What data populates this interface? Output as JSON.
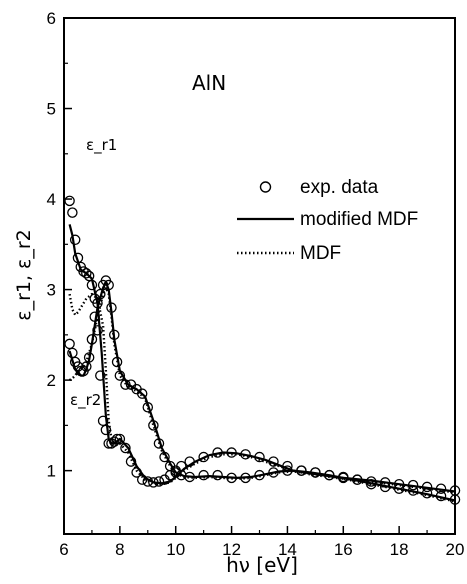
{
  "chart_data": {
    "type": "scatter",
    "title": "",
    "xlabel": "hν [eV]",
    "ylabel": "ε_r1, ε_r2",
    "xlim": [
      6,
      20
    ],
    "ylim": [
      0.3,
      6
    ],
    "x_ticks": [
      6,
      8,
      10,
      12,
      14,
      16,
      18,
      20
    ],
    "y_ticks": [
      1,
      2,
      3,
      4,
      5,
      6
    ],
    "grid": false,
    "legend_position": "right, upper-middle",
    "annotations": {
      "material": "AlN",
      "eps_r1_label": "ε_r1",
      "eps_r2_label": "ε_r2"
    },
    "series": [
      {
        "name": "exp. data",
        "kind": "markers",
        "curves": [
          {
            "label": "ε_r1",
            "x": [
              6.2,
              6.3,
              6.4,
              6.5,
              6.6,
              6.7,
              6.8,
              6.9,
              7.0,
              7.1,
              7.2,
              7.3,
              7.4,
              7.5,
              7.6,
              7.7,
              7.8,
              7.9,
              8.0,
              8.2,
              8.4,
              8.6,
              8.8,
              9.0,
              9.2,
              9.4,
              9.6,
              9.8,
              10.0,
              10.2,
              10.5,
              11.0,
              11.5,
              12.0,
              12.5,
              13.0,
              13.5,
              14.0,
              14.5,
              15.0,
              15.5,
              16.0,
              16.5,
              17.0,
              17.5,
              18.0,
              18.5,
              19.0,
              19.5,
              20.0
            ],
            "y": [
              3.98,
              3.85,
              3.55,
              3.35,
              3.25,
              3.2,
              3.18,
              3.15,
              3.05,
              2.9,
              2.55,
              2.05,
              1.55,
              1.45,
              1.3,
              1.3,
              1.32,
              1.35,
              1.35,
              1.25,
              1.1,
              0.98,
              0.9,
              0.88,
              0.87,
              0.88,
              0.9,
              0.95,
              1.0,
              1.05,
              1.1,
              1.15,
              1.2,
              1.2,
              1.18,
              1.15,
              1.1,
              1.05,
              1.0,
              0.98,
              0.95,
              0.93,
              0.9,
              0.88,
              0.87,
              0.85,
              0.84,
              0.82,
              0.8,
              0.78
            ]
          },
          {
            "label": "ε_r2",
            "x": [
              6.2,
              6.3,
              6.4,
              6.5,
              6.6,
              6.7,
              6.8,
              6.9,
              7.0,
              7.1,
              7.2,
              7.3,
              7.4,
              7.5,
              7.6,
              7.7,
              7.8,
              7.9,
              8.0,
              8.2,
              8.4,
              8.6,
              8.8,
              9.0,
              9.2,
              9.4,
              9.6,
              9.8,
              10.0,
              10.2,
              10.5,
              11.0,
              11.5,
              12.0,
              12.5,
              13.0,
              13.5,
              14.0,
              14.5,
              15.0,
              15.5,
              16.0,
              16.5,
              17.0,
              17.5,
              18.0,
              18.5,
              19.0,
              19.5,
              20.0
            ],
            "y": [
              2.4,
              2.3,
              2.2,
              2.15,
              2.1,
              2.1,
              2.15,
              2.25,
              2.45,
              2.7,
              2.85,
              2.95,
              3.05,
              3.1,
              3.05,
              2.8,
              2.5,
              2.2,
              2.05,
              1.95,
              1.95,
              1.9,
              1.85,
              1.7,
              1.5,
              1.3,
              1.15,
              1.05,
              0.98,
              0.95,
              0.93,
              0.95,
              0.95,
              0.92,
              0.92,
              0.95,
              0.98,
              1.0,
              1.0,
              0.98,
              0.95,
              0.92,
              0.9,
              0.85,
              0.82,
              0.8,
              0.78,
              0.75,
              0.72,
              0.68
            ]
          }
        ]
      },
      {
        "name": "modified MDF",
        "kind": "solid-line",
        "curves": [
          {
            "label": "ε_r1",
            "x": [
              6.2,
              6.3,
              6.4,
              6.6,
              6.8,
              7.0,
              7.2,
              7.35,
              7.5,
              7.6,
              7.7,
              7.8,
              8.0,
              8.3,
              8.6,
              8.9,
              9.2,
              9.5,
              9.8,
              10.0,
              10.3,
              10.7,
              11.2,
              11.7,
              12.2,
              12.7,
              13.2,
              13.7,
              14.2,
              14.8,
              15.5,
              16.0,
              17.0,
              18.0,
              19.0,
              20.0
            ],
            "y": [
              3.72,
              3.6,
              3.4,
              3.22,
              3.18,
              3.12,
              2.85,
              2.3,
              1.6,
              1.35,
              1.3,
              1.3,
              1.35,
              1.25,
              1.05,
              0.92,
              0.87,
              0.86,
              0.88,
              0.93,
              1.02,
              1.1,
              1.17,
              1.2,
              1.19,
              1.16,
              1.12,
              1.06,
              1.0,
              0.97,
              0.94,
              0.92,
              0.89,
              0.85,
              0.81,
              0.77
            ]
          },
          {
            "label": "ε_r2",
            "x": [
              6.2,
              6.3,
              6.4,
              6.5,
              6.6,
              6.7,
              6.8,
              6.9,
              7.0,
              7.2,
              7.4,
              7.5,
              7.6,
              7.7,
              7.8,
              8.0,
              8.3,
              8.6,
              8.9,
              9.2,
              9.5,
              9.8,
              10.0,
              10.3,
              10.7,
              11.2,
              11.7,
              12.2,
              12.7,
              13.2,
              13.7,
              14.2,
              14.8,
              15.5,
              16.0,
              17.0,
              18.0,
              19.0,
              20.0
            ],
            "y": [
              2.32,
              2.22,
              2.12,
              2.08,
              2.05,
              2.05,
              2.12,
              2.22,
              2.4,
              2.8,
              3.02,
              3.08,
              3.0,
              2.75,
              2.45,
              2.1,
              1.95,
              1.9,
              1.82,
              1.55,
              1.25,
              1.08,
              0.98,
              0.94,
              0.93,
              0.94,
              0.93,
              0.92,
              0.93,
              0.96,
              0.99,
              1.0,
              0.98,
              0.95,
              0.92,
              0.86,
              0.8,
              0.74,
              0.67
            ]
          }
        ]
      },
      {
        "name": "MDF",
        "kind": "dotted-line",
        "curves": [
          {
            "label": "ε_r1",
            "x": [
              6.2,
              6.3,
              6.4,
              6.5,
              6.6,
              6.8,
              7.0,
              7.2,
              7.4,
              7.5,
              7.6,
              7.7,
              7.8,
              8.0,
              8.3,
              8.6,
              8.9,
              9.2,
              9.5,
              9.8,
              10.0,
              10.3,
              10.7,
              11.2,
              11.7,
              12.2,
              12.7,
              13.2,
              13.7,
              14.2,
              14.8,
              15.5,
              16.0,
              17.0,
              18.0,
              19.0,
              20.0
            ],
            "y": [
              2.95,
              2.78,
              2.72,
              2.75,
              2.8,
              2.9,
              2.95,
              2.9,
              2.6,
              2.1,
              1.55,
              1.35,
              1.3,
              1.3,
              1.2,
              1.0,
              0.9,
              0.86,
              0.85,
              0.87,
              0.92,
              1.0,
              1.08,
              1.15,
              1.18,
              1.18,
              1.15,
              1.1,
              1.05,
              1.0,
              0.96,
              0.93,
              0.91,
              0.88,
              0.84,
              0.8,
              0.76
            ]
          },
          {
            "label": "ε_r2",
            "x": [
              6.2,
              6.3,
              6.4,
              6.5,
              6.6,
              6.7,
              6.8,
              7.0,
              7.2,
              7.4,
              7.5,
              7.6,
              7.7,
              7.8,
              8.0,
              8.3,
              8.6,
              8.9,
              9.2,
              9.5,
              9.8,
              10.0,
              10.3,
              10.7,
              11.2,
              11.7,
              12.2,
              12.7,
              13.2,
              13.7,
              14.2,
              14.8,
              15.5,
              16.0,
              17.0,
              18.0,
              19.0,
              20.0
            ],
            "y": [
              2.0,
              2.02,
              2.05,
              2.1,
              2.12,
              2.15,
              2.2,
              2.4,
              2.7,
              2.95,
              3.02,
              2.95,
              2.7,
              2.4,
              2.05,
              1.92,
              1.88,
              1.8,
              1.5,
              1.22,
              1.05,
              0.97,
              0.93,
              0.92,
              0.93,
              0.92,
              0.91,
              0.92,
              0.95,
              0.98,
              0.99,
              0.97,
              0.94,
              0.91,
              0.85,
              0.79,
              0.73,
              0.66
            ]
          }
        ]
      }
    ]
  }
}
